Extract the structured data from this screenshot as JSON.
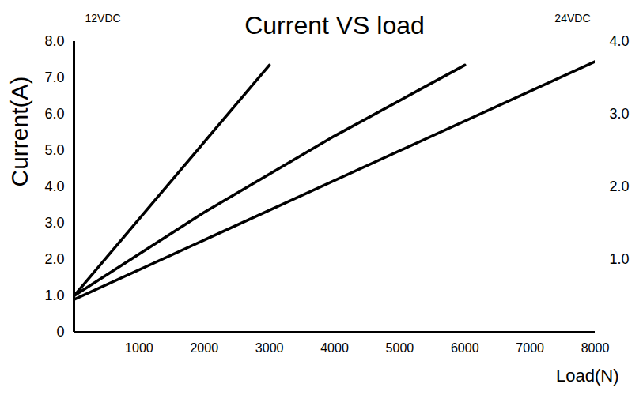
{
  "chart_data": {
    "type": "line",
    "title": "Current VS load",
    "x_label": "Load(N)",
    "y_label": "Current(A)",
    "annotations": [
      {
        "text": "12VDC",
        "axis": "y"
      },
      {
        "text": "24VDC",
        "axis": "y2"
      }
    ],
    "xlim": [
      0,
      8000
    ],
    "xticks": [
      1000,
      2000,
      3000,
      4000,
      5000,
      6000,
      7000,
      8000
    ],
    "ylim": [
      0,
      8
    ],
    "yticks": [
      0,
      {
        "value": 1,
        "label": "1.0"
      },
      {
        "value": 2,
        "label": "2.0"
      },
      {
        "value": 3,
        "label": "3.0"
      },
      {
        "value": 4,
        "label": "4.0"
      },
      {
        "value": 5,
        "label": "5.0"
      },
      {
        "value": 6,
        "label": "6.0"
      },
      {
        "value": 7,
        "label": "7.0"
      },
      {
        "value": 8,
        "label": "8.0"
      }
    ],
    "y2lim": [
      0,
      4
    ],
    "y2ticks": [
      {
        "value": 1,
        "label": "1.0"
      },
      {
        "value": 2,
        "label": "2.0"
      },
      {
        "value": 3,
        "label": "3.0"
      },
      {
        "value": 4,
        "label": "4.0"
      }
    ],
    "grid": false,
    "series": [
      {
        "color": "#000000",
        "x": [
          0,
          3000
        ],
        "values": [
          1.0,
          7.35
        ]
      },
      {
        "color": "#000000",
        "x": [
          0,
          2000,
          4000,
          6000
        ],
        "values": [
          1.0,
          3.3,
          5.4,
          7.35
        ]
      },
      {
        "color": "#000000",
        "x": [
          0,
          8000
        ],
        "values": [
          0.9,
          7.45
        ]
      }
    ]
  }
}
